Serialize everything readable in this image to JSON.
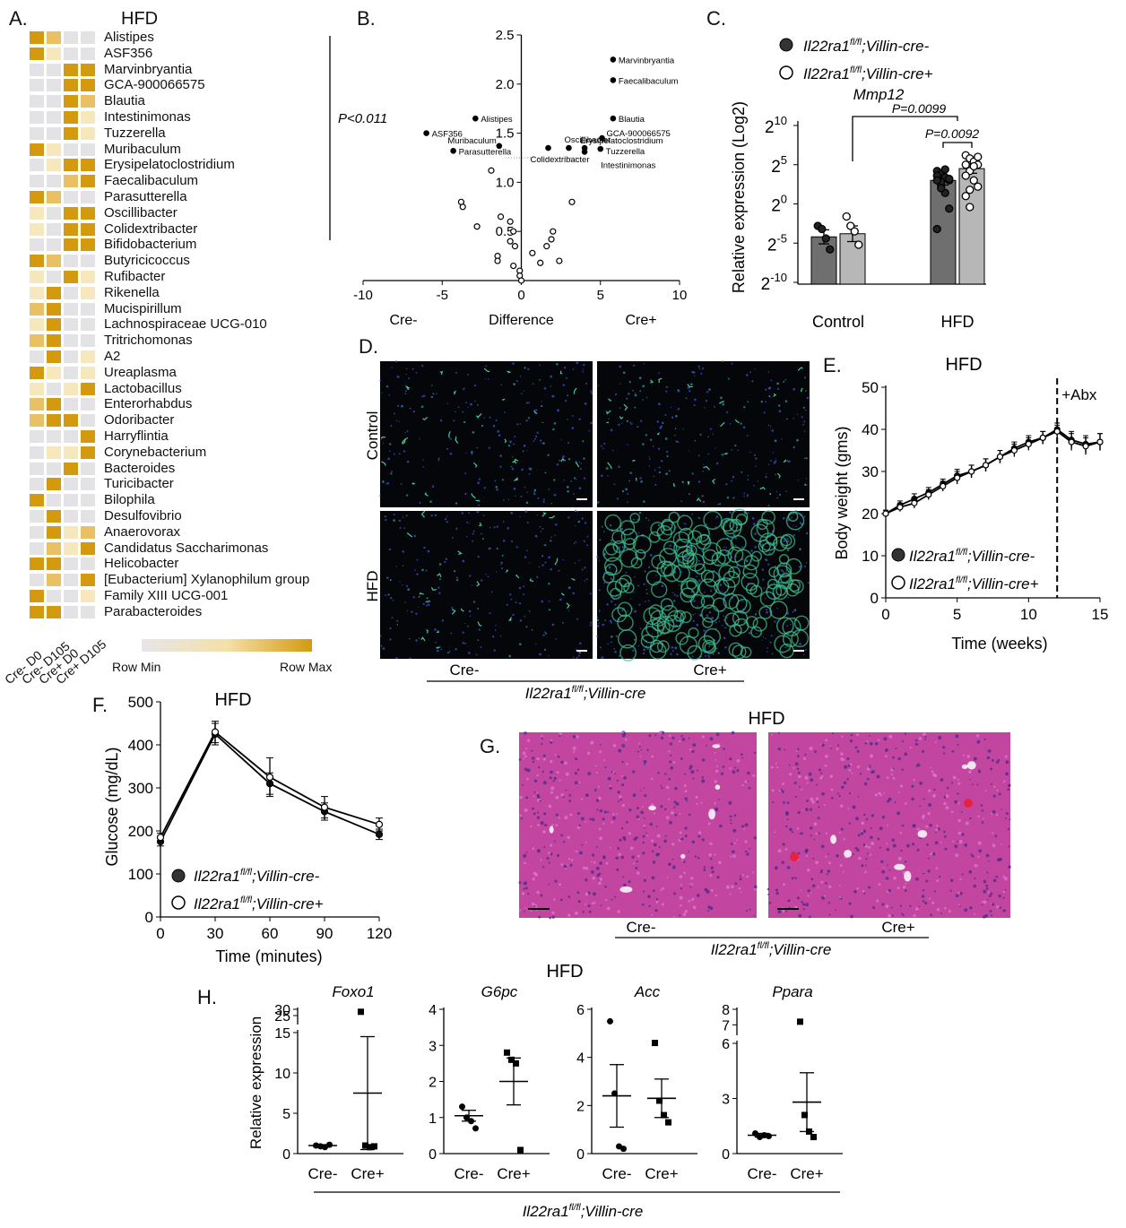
{
  "colors": {
    "heat_min": "#e6e6e8",
    "heat_mid": "#f5e0a8",
    "heat_max": "#d39a10",
    "bar_dark": "#6f6f6f",
    "bar_light": "#b7b7b7",
    "histo": "#b83a9c"
  },
  "panelA": {
    "label": "A.",
    "title": "HFD",
    "columns": [
      "Cre- D0",
      "Cre- D105",
      "Cre+ D0",
      "Cre+ D105"
    ],
    "legend_min": "Row Min",
    "legend_max": "Row Max",
    "rows": [
      {
        "name": "Alistipes",
        "v": [
          3,
          2,
          0,
          0
        ]
      },
      {
        "name": "ASF356",
        "v": [
          3,
          1,
          0,
          0
        ]
      },
      {
        "name": "Marvinbryantia",
        "v": [
          0,
          0,
          3,
          3
        ]
      },
      {
        "name": "GCA-900066575",
        "v": [
          0,
          0,
          3,
          3
        ]
      },
      {
        "name": "Blautia",
        "v": [
          0,
          0,
          3,
          2
        ]
      },
      {
        "name": "Intestinimonas",
        "v": [
          0,
          0,
          3,
          1
        ]
      },
      {
        "name": "Tuzzerella",
        "v": [
          0,
          0,
          3,
          1
        ]
      },
      {
        "name": "Muribaculum",
        "v": [
          3,
          1,
          0,
          0
        ]
      },
      {
        "name": "Erysipelatoclostridium",
        "v": [
          0,
          1,
          3,
          3
        ]
      },
      {
        "name": "Faecalibaculum",
        "v": [
          0,
          0,
          2,
          3
        ]
      },
      {
        "name": "Parasutterella",
        "v": [
          3,
          2,
          0,
          0
        ]
      },
      {
        "name": "Oscillibacter",
        "v": [
          1,
          0,
          3,
          3
        ]
      },
      {
        "name": "Colidextribacter",
        "v": [
          1,
          0,
          3,
          3
        ]
      },
      {
        "name": "Bifidobacterium",
        "v": [
          0,
          0,
          3,
          3
        ]
      },
      {
        "name": "Butyricicoccus",
        "v": [
          3,
          2,
          0,
          0
        ]
      },
      {
        "name": "Rufibacter",
        "v": [
          1,
          0,
          3,
          1
        ]
      },
      {
        "name": "Rikenella",
        "v": [
          1,
          3,
          0,
          1
        ]
      },
      {
        "name": "Mucispirillum",
        "v": [
          2,
          3,
          0,
          0
        ]
      },
      {
        "name": "Lachnospiraceae UCG-010",
        "v": [
          1,
          3,
          0,
          0
        ]
      },
      {
        "name": "Tritrichomonas",
        "v": [
          2,
          3,
          0,
          0
        ]
      },
      {
        "name": "A2",
        "v": [
          0,
          3,
          0,
          1
        ]
      },
      {
        "name": "Ureaplasma",
        "v": [
          3,
          1,
          0,
          1
        ]
      },
      {
        "name": "Lactobacillus",
        "v": [
          1,
          0,
          1,
          3
        ]
      },
      {
        "name": "Enterorhabdus",
        "v": [
          2,
          3,
          0,
          0
        ]
      },
      {
        "name": "Odoribacter",
        "v": [
          2,
          3,
          3,
          0
        ]
      },
      {
        "name": "Harryflintia",
        "v": [
          0,
          0,
          0,
          3
        ]
      },
      {
        "name": "Corynebacterium",
        "v": [
          0,
          1,
          1,
          3
        ]
      },
      {
        "name": "Bacteroides",
        "v": [
          0,
          0,
          3,
          0
        ]
      },
      {
        "name": "Turicibacter",
        "v": [
          0,
          3,
          0,
          0
        ]
      },
      {
        "name": "Bilophila",
        "v": [
          3,
          0,
          0,
          0
        ]
      },
      {
        "name": "Desulfovibrio",
        "v": [
          0,
          3,
          0,
          0
        ]
      },
      {
        "name": "Anaerovorax",
        "v": [
          0,
          3,
          1,
          2
        ]
      },
      {
        "name": "Candidatus Saccharimonas",
        "v": [
          0,
          2,
          1,
          3
        ]
      },
      {
        "name": "Helicobacter",
        "v": [
          3,
          3,
          0,
          0
        ]
      },
      {
        "name": "[Eubacterium] Xylanophilum group",
        "v": [
          0,
          2,
          0,
          3
        ]
      },
      {
        "name": "Family XIII UCG-001",
        "v": [
          3,
          0,
          0,
          1
        ]
      },
      {
        "name": "Parabacteroides",
        "v": [
          3,
          3,
          0,
          0
        ]
      }
    ]
  },
  "panelB": {
    "label": "B.",
    "pval": "P<0.011",
    "xlabel": "Difference",
    "left_label": "Cre-",
    "right_label": "Cre+",
    "xticks": [
      "-10",
      "-5",
      "0",
      "5",
      "10"
    ],
    "yticks": [
      "0.5",
      "1.0",
      "1.5",
      "2.0",
      "2.5"
    ]
  },
  "panelC": {
    "label": "C.",
    "ylabel": "Relative expression (Log2)",
    "gene": "Mmp12",
    "legend1": "Il22ra1",
    "legend_sup": "fl/fl",
    "legend1_suffix": ";Villin-cre-",
    "legend2_suffix": ";Villin-cre+",
    "p1": "P=0.0099",
    "p2": "P=0.0092",
    "groups": [
      "Control",
      "HFD"
    ],
    "yticks": [
      {
        "b": "2",
        "e": "10"
      },
      {
        "b": "2",
        "e": "5"
      },
      {
        "b": "2",
        "e": "0"
      },
      {
        "b": "2",
        "e": "-5"
      },
      {
        "b": "2",
        "e": "-10"
      }
    ]
  },
  "panelD": {
    "label": "D.",
    "rows": [
      "Control",
      "HFD"
    ],
    "cols": [
      "Cre-",
      "Cre+"
    ],
    "genotype": "Il22ra1",
    "genotype_sup": "fl/fl",
    "genotype_suffix": ";Villin-cre"
  },
  "panelE": {
    "label": "E.",
    "title": "HFD",
    "ylabel": "Body weight (gms)",
    "xlabel": "Time (weeks)",
    "abx": "+Abx",
    "xticks": [
      "0",
      "5",
      "10",
      "15"
    ],
    "yticks": [
      "0",
      "10",
      "20",
      "30",
      "40",
      "50"
    ],
    "legend1": "Il22ra1",
    "legend_sup": "fl/fl",
    "legend1_suffix": ";Villin-cre-",
    "legend2_suffix": ";Villin-cre+"
  },
  "panelF": {
    "label": "F.",
    "title": "HFD",
    "ylabel": "Glucose (mg/dL)",
    "xlabel": "Time (minutes)",
    "xticks": [
      "0",
      "30",
      "60",
      "90",
      "120"
    ],
    "yticks": [
      "0",
      "100",
      "200",
      "300",
      "400",
      "500"
    ],
    "legend1": "Il22ra1",
    "legend_sup": "fl/fl",
    "legend1_suffix": ";Villin-cre-",
    "legend2_suffix": ";Villin-cre+"
  },
  "panelG": {
    "label": "G.",
    "title": "HFD",
    "cols": [
      "Cre-",
      "Cre+"
    ],
    "genotype": "Il22ra1",
    "genotype_sup": "fl/fl",
    "genotype_suffix": ";Villin-cre"
  },
  "panelH": {
    "label": "H.",
    "title": "HFD",
    "ylabel": "Relative expression",
    "genes": [
      "Foxo1",
      "G6pc",
      "Acc",
      "Ppara"
    ],
    "groups": [
      "Cre-",
      "Cre+"
    ],
    "genotype": "Il22ra1",
    "genotype_sup": "fl/fl",
    "genotype_suffix": ";Villin-cre"
  },
  "chart_data": [
    {
      "type": "scatter",
      "id": "B-volcano",
      "xlabel": "Difference",
      "ylim": [
        0,
        2.5
      ],
      "xlim": [
        -10,
        10
      ],
      "labeled_points": [
        {
          "name": "Marvinbryantia",
          "x": 5.8,
          "y": 2.25
        },
        {
          "name": "Faecalibaculum",
          "x": 5.8,
          "y": 2.04
        },
        {
          "name": "Blautia",
          "x": 5.8,
          "y": 1.65
        },
        {
          "name": "Alistipes",
          "x": -2.9,
          "y": 1.65
        },
        {
          "name": "ASF356",
          "x": -6.0,
          "y": 1.5
        },
        {
          "name": "Muribaculum",
          "x": -1.4,
          "y": 1.37
        },
        {
          "name": "Parasutterella",
          "x": -4.3,
          "y": 1.32
        },
        {
          "name": "Oscillibacter",
          "x": 3.0,
          "y": 1.35
        },
        {
          "name": "GCA-900066575",
          "x": 5.1,
          "y": 1.45
        },
        {
          "name": "Erysipelatoclostridium",
          "x": 4.0,
          "y": 1.35
        },
        {
          "name": "Tuzzerella",
          "x": 5.0,
          "y": 1.34
        },
        {
          "name": "Colidextribacter",
          "x": 1.7,
          "y": 1.35
        },
        {
          "name": "Intestinimonas",
          "x": 4.0,
          "y": 1.31
        }
      ],
      "unlabeled_points": [
        {
          "x": -1.9,
          "y": 1.12
        },
        {
          "x": -3.8,
          "y": 0.8
        },
        {
          "x": -3.7,
          "y": 0.75
        },
        {
          "x": -2.8,
          "y": 0.55
        },
        {
          "x": -1.3,
          "y": 0.65
        },
        {
          "x": -0.7,
          "y": 0.6
        },
        {
          "x": -0.5,
          "y": 0.5
        },
        {
          "x": -0.7,
          "y": 0.4
        },
        {
          "x": -0.4,
          "y": 0.35
        },
        {
          "x": -1.5,
          "y": 0.25
        },
        {
          "x": -1.5,
          "y": 0.2
        },
        {
          "x": -0.1,
          "y": 0.1
        },
        {
          "x": -0.1,
          "y": 0.05
        },
        {
          "x": 0.7,
          "y": 0.28
        },
        {
          "x": 1.2,
          "y": 0.18
        },
        {
          "x": 1.6,
          "y": 0.35
        },
        {
          "x": 1.9,
          "y": 0.42
        },
        {
          "x": 2.0,
          "y": 0.5
        },
        {
          "x": 2.4,
          "y": 0.2
        },
        {
          "x": 3.2,
          "y": 0.8
        },
        {
          "x": 0.0,
          "y": 0.0
        },
        {
          "x": -0.5,
          "y": 0.15
        }
      ],
      "threshold": 1.25
    },
    {
      "type": "bar",
      "id": "C-mmp12",
      "categories": [
        "Control",
        "HFD"
      ],
      "series": [
        {
          "name": "Il22ra1fl/fl;Villin-cre-",
          "values": [
            -4.2,
            3.0
          ],
          "err": [
            0.9,
            0.6
          ],
          "points": [
            [
              -2.8,
              -3.2,
              -4.4,
              -5.8
            ],
            [
              4.2,
              3.8,
              3.4,
              3.0,
              3.6,
              2.4,
              1.4,
              -0.6,
              -3.2,
              2.8,
              4.4,
              3.2,
              3.0,
              2.0
            ]
          ]
        },
        {
          "name": "Il22ra1fl/fl;Villin-cre+",
          "values": [
            -3.8,
            4.5
          ],
          "err": [
            1.0,
            0.6
          ],
          "points": [
            [
              -1.6,
              -2.8,
              -3.5,
              -5.2
            ],
            [
              6.2,
              5.8,
              5.4,
              5.0,
              5.0,
              4.2,
              3.0,
              2.2,
              1.0,
              -0.4,
              4.8,
              6.0,
              3.6,
              1.8
            ]
          ]
        }
      ],
      "ylim": [
        -10,
        10
      ]
    },
    {
      "type": "line",
      "id": "E-bodyweight",
      "x": [
        0,
        1,
        2,
        3,
        4,
        5,
        6,
        7,
        8,
        9,
        10,
        11,
        12,
        13,
        14,
        15
      ],
      "series": [
        {
          "name": "Il22ra1fl/fl;Villin-cre-",
          "values": [
            20,
            22,
            23.5,
            25,
            27,
            29,
            30,
            31.5,
            33.5,
            35.5,
            37,
            38,
            40,
            37.5,
            36.5,
            37
          ],
          "err": [
            0.8,
            1,
            1.2,
            1.2,
            1.2,
            1.5,
            1.5,
            1.5,
            1.5,
            1.5,
            1.5,
            1.5,
            1.5,
            2,
            2,
            2
          ]
        },
        {
          "name": "Il22ra1fl/fl;Villin-cre+",
          "values": [
            20,
            21.5,
            22.5,
            24.5,
            26.5,
            28.5,
            30,
            31.5,
            33.5,
            35,
            36.5,
            38,
            39.5,
            37,
            36,
            37
          ],
          "err": [
            0.8,
            1,
            1.2,
            1.2,
            1.2,
            1.5,
            1.5,
            1.5,
            1.5,
            1.5,
            1.5,
            1.5,
            1.5,
            2,
            2,
            2
          ]
        }
      ],
      "ylim": [
        0,
        50
      ],
      "xlim": [
        0,
        15
      ],
      "abx_week": 12
    },
    {
      "type": "line",
      "id": "F-gtt",
      "x": [
        0,
        30,
        60,
        90,
        120
      ],
      "series": [
        {
          "name": "Il22ra1fl/fl;Villin-cre-",
          "values": [
            175,
            425,
            310,
            245,
            192
          ],
          "err": [
            10,
            25,
            25,
            20,
            12
          ]
        },
        {
          "name": "Il22ra1fl/fl;Villin-cre+",
          "values": [
            185,
            430,
            325,
            255,
            215
          ],
          "err": [
            10,
            25,
            45,
            25,
            15
          ]
        }
      ],
      "ylim": [
        0,
        500
      ],
      "xlim": [
        0,
        120
      ]
    },
    {
      "type": "scatter",
      "id": "H-genes",
      "genes": [
        {
          "gene": "Foxo1",
          "cre_minus": {
            "mean": 1.0,
            "sem": 0.1,
            "points": [
              1.0,
              0.9,
              0.8,
              1.1
            ]
          },
          "cre_plus": {
            "mean": 7.5,
            "sem": 7.0,
            "points": [
              28,
              1.0,
              0.8,
              0.9
            ]
          }
        },
        {
          "gene": "G6pc",
          "cre_minus": {
            "mean": 1.05,
            "sem": 0.15,
            "points": [
              1.3,
              1.0,
              0.9,
              0.7
            ]
          },
          "cre_plus": {
            "mean": 2.0,
            "sem": 0.65,
            "points": [
              2.8,
              2.6,
              2.5,
              0.1
            ]
          }
        },
        {
          "gene": "Acc",
          "cre_minus": {
            "mean": 2.4,
            "sem": 1.3,
            "points": [
              5.5,
              2.5,
              0.3,
              0.2
            ]
          },
          "cre_plus": {
            "mean": 2.3,
            "sem": 0.8,
            "points": [
              4.6,
              2.2,
              1.6,
              1.3
            ]
          }
        },
        {
          "gene": "Ppara",
          "cre_minus": {
            "mean": 1.0,
            "sem": 0.1,
            "points": [
              1.1,
              0.9,
              1.0,
              0.95
            ]
          },
          "cre_plus": {
            "mean": 2.8,
            "sem": 1.6,
            "points": [
              7.2,
              2.1,
              1.2,
              0.9
            ]
          }
        }
      ]
    }
  ]
}
